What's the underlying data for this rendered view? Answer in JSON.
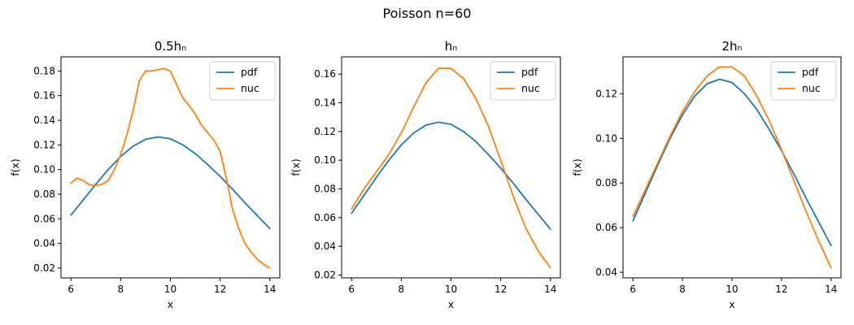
{
  "figure": {
    "title": "Poisson n=60"
  },
  "chart_data": [
    {
      "type": "line",
      "title": "0.5hₙ",
      "xlabel": "x",
      "ylabel": "f(x)",
      "xlim": [
        5.6,
        14.4
      ],
      "ylim": [
        0.012,
        0.1915
      ],
      "xticks": [
        6,
        8,
        10,
        12,
        14
      ],
      "yticks": [
        0.02,
        0.04,
        0.06,
        0.08,
        0.1,
        0.12,
        0.14,
        0.16,
        0.18
      ],
      "ytick_labels": [
        "0.02",
        "0.04",
        "0.06",
        "0.08",
        "0.10",
        "0.12",
        "0.14",
        "0.16",
        "0.18"
      ],
      "legend": "top-right",
      "series": [
        {
          "name": "pdf",
          "color": "#1f77b4",
          "x": [
            6,
            6.5,
            7,
            7.5,
            8,
            8.5,
            9,
            9.5,
            10,
            10.5,
            11,
            11.5,
            12,
            12.5,
            13,
            13.5,
            14
          ],
          "y": [
            0.063,
            0.0755,
            0.088,
            0.1,
            0.1105,
            0.119,
            0.1245,
            0.1265,
            0.125,
            0.12,
            0.113,
            0.104,
            0.0945,
            0.084,
            0.073,
            0.0625,
            0.052
          ]
        },
        {
          "name": "nuc",
          "color": "#ff7f0e",
          "x": [
            6,
            6.25,
            6.5,
            6.75,
            7,
            7.25,
            7.5,
            7.75,
            8,
            8.25,
            8.5,
            8.75,
            9,
            9.25,
            9.5,
            9.75,
            10,
            10.25,
            10.5,
            10.75,
            11,
            11.25,
            11.5,
            11.75,
            12,
            12.25,
            12.5,
            12.75,
            13,
            13.25,
            13.5,
            13.75,
            14
          ],
          "y": [
            0.089,
            0.093,
            0.091,
            0.0875,
            0.087,
            0.088,
            0.091,
            0.1,
            0.112,
            0.128,
            0.148,
            0.172,
            0.18,
            0.18,
            0.181,
            0.182,
            0.18,
            0.169,
            0.158,
            0.152,
            0.145,
            0.136,
            0.13,
            0.124,
            0.115,
            0.093,
            0.068,
            0.052,
            0.04,
            0.033,
            0.027,
            0.023,
            0.02
          ]
        }
      ]
    },
    {
      "type": "line",
      "title": "hₙ",
      "xlabel": "x",
      "ylabel": "f(x)",
      "xlim": [
        5.6,
        14.4
      ],
      "ylim": [
        0.018,
        0.172
      ],
      "xticks": [
        6,
        8,
        10,
        12,
        14
      ],
      "yticks": [
        0.02,
        0.04,
        0.06,
        0.08,
        0.1,
        0.12,
        0.14,
        0.16
      ],
      "ytick_labels": [
        "0.02",
        "0.04",
        "0.06",
        "0.08",
        "0.10",
        "0.12",
        "0.14",
        "0.16"
      ],
      "legend": "top-right",
      "series": [
        {
          "name": "pdf",
          "color": "#1f77b4",
          "x": [
            6,
            6.5,
            7,
            7.5,
            8,
            8.5,
            9,
            9.5,
            10,
            10.5,
            11,
            11.5,
            12,
            12.5,
            13,
            13.5,
            14
          ],
          "y": [
            0.063,
            0.0755,
            0.088,
            0.1,
            0.1105,
            0.119,
            0.1245,
            0.1265,
            0.125,
            0.12,
            0.113,
            0.104,
            0.0945,
            0.084,
            0.073,
            0.0625,
            0.052
          ]
        },
        {
          "name": "nuc",
          "color": "#ff7f0e",
          "x": [
            6,
            6.5,
            7,
            7.5,
            8,
            8.5,
            9,
            9.5,
            10,
            10.5,
            11,
            11.5,
            12,
            12.5,
            13,
            13.5,
            14
          ],
          "y": [
            0.066,
            0.08,
            0.092,
            0.104,
            0.119,
            0.137,
            0.154,
            0.164,
            0.164,
            0.157,
            0.143,
            0.124,
            0.1,
            0.075,
            0.053,
            0.037,
            0.025
          ]
        }
      ]
    },
    {
      "type": "line",
      "title": "2hₙ",
      "xlabel": "x",
      "ylabel": "f(x)",
      "xlim": [
        5.6,
        14.4
      ],
      "ylim": [
        0.0375,
        0.1365
      ],
      "xticks": [
        6,
        8,
        10,
        12,
        14
      ],
      "yticks": [
        0.04,
        0.06,
        0.08,
        0.1,
        0.12
      ],
      "ytick_labels": [
        "0.04",
        "0.06",
        "0.08",
        "0.10",
        "0.12"
      ],
      "legend": "top-right",
      "series": [
        {
          "name": "pdf",
          "color": "#1f77b4",
          "x": [
            6,
            6.5,
            7,
            7.5,
            8,
            8.5,
            9,
            9.5,
            10,
            10.5,
            11,
            11.5,
            12,
            12.5,
            13,
            13.5,
            14
          ],
          "y": [
            0.063,
            0.0755,
            0.088,
            0.1,
            0.1105,
            0.119,
            0.1245,
            0.1265,
            0.125,
            0.12,
            0.113,
            0.104,
            0.0945,
            0.084,
            0.073,
            0.0625,
            0.052
          ]
        },
        {
          "name": "nuc",
          "color": "#ff7f0e",
          "x": [
            6,
            6.5,
            7,
            7.5,
            8,
            8.5,
            9,
            9.5,
            10,
            10.5,
            11,
            11.5,
            12,
            12.5,
            13,
            13.5,
            14
          ],
          "y": [
            0.065,
            0.077,
            0.089,
            0.101,
            0.112,
            0.121,
            0.128,
            0.132,
            0.132,
            0.128,
            0.119,
            0.108,
            0.095,
            0.081,
            0.067,
            0.054,
            0.042
          ]
        }
      ]
    }
  ]
}
